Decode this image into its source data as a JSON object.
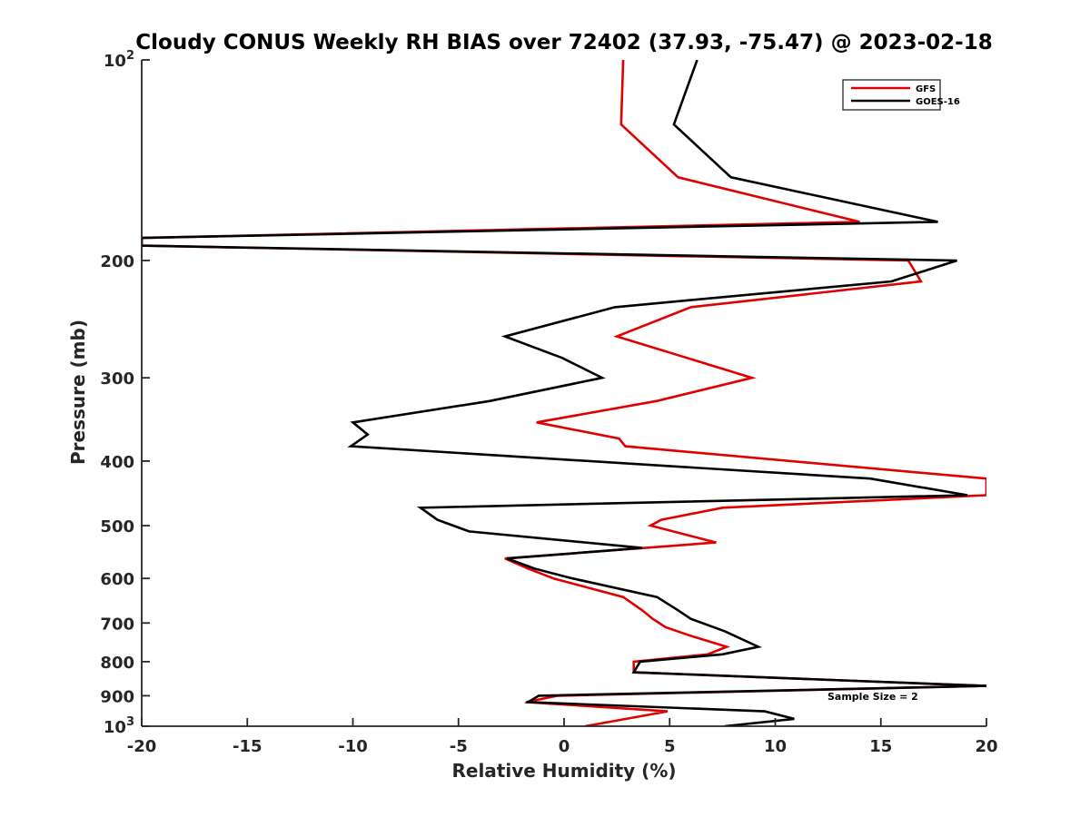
{
  "chart_data": {
    "type": "line",
    "title": "Cloudy CONUS Weekly RH BIAS over 72402 (37.93, -75.47) @ 2023-02-18",
    "xlabel": "Relative Humidity (%)",
    "ylabel": "Pressure (mb)",
    "xlim": [
      -20,
      20
    ],
    "ylim": [
      100,
      1000
    ],
    "y_scale": "log",
    "y_reversed": true,
    "grid": false,
    "legend_position": "top-right",
    "x_ticks": [
      "-20",
      "-15",
      "-10",
      "-5",
      "0",
      "5",
      "10",
      "15",
      "20"
    ],
    "y_ticks": [
      {
        "value": 100,
        "base": "10",
        "exp": "2"
      },
      {
        "value": 200,
        "label": "200"
      },
      {
        "value": 300,
        "label": "300"
      },
      {
        "value": 400,
        "label": "400"
      },
      {
        "value": 500,
        "label": "500"
      },
      {
        "value": 600,
        "label": "600"
      },
      {
        "value": 700,
        "label": "700"
      },
      {
        "value": 800,
        "label": "800"
      },
      {
        "value": 900,
        "label": "900"
      },
      {
        "value": 1000,
        "base": "10",
        "exp": "3"
      }
    ],
    "series": [
      {
        "name": "GFS",
        "color": "#e00000",
        "points": [
          [
            2.8,
            100
          ],
          [
            2.7,
            125
          ],
          [
            5.4,
            150
          ],
          [
            14.0,
            175
          ],
          [
            -20,
            185
          ],
          [
            -20,
            190
          ],
          [
            16.3,
            200
          ],
          [
            16.9,
            215
          ],
          [
            6.0,
            235
          ],
          [
            2.5,
            260
          ],
          [
            8.9,
            300
          ],
          [
            4.4,
            325
          ],
          [
            -1.3,
            350
          ],
          [
            2.6,
            370
          ],
          [
            2.9,
            380
          ],
          [
            20,
            425
          ],
          [
            20,
            450
          ],
          [
            7.5,
            470
          ],
          [
            4.6,
            490
          ],
          [
            4.1,
            500
          ],
          [
            7.2,
            530
          ],
          [
            -2.8,
            560
          ],
          [
            -1.7,
            580
          ],
          [
            -0.5,
            600
          ],
          [
            2.8,
            640
          ],
          [
            3.7,
            670
          ],
          [
            4.2,
            690
          ],
          [
            4.8,
            710
          ],
          [
            5.9,
            730
          ],
          [
            7.7,
            760
          ],
          [
            6.8,
            780
          ],
          [
            3.3,
            800
          ],
          [
            3.3,
            830
          ],
          [
            20,
            870
          ],
          [
            -0.3,
            900
          ],
          [
            -1.8,
            920
          ],
          [
            4.9,
            950
          ],
          [
            1.0,
            1000
          ]
        ]
      },
      {
        "name": "GOES-16",
        "color": "#000000",
        "points": [
          [
            6.3,
            100
          ],
          [
            5.2,
            125
          ],
          [
            7.9,
            150
          ],
          [
            17.7,
            175
          ],
          [
            -20,
            185
          ],
          [
            -20,
            190
          ],
          [
            18.6,
            200
          ],
          [
            15.5,
            215
          ],
          [
            2.4,
            235
          ],
          [
            -2.8,
            260
          ],
          [
            -0.1,
            280
          ],
          [
            1.8,
            300
          ],
          [
            -3.5,
            325
          ],
          [
            -10.0,
            350
          ],
          [
            -9.3,
            365
          ],
          [
            -10.1,
            380
          ],
          [
            14.5,
            425
          ],
          [
            19.1,
            450
          ],
          [
            -6.8,
            470
          ],
          [
            -6.0,
            490
          ],
          [
            -4.5,
            510
          ],
          [
            3.7,
            540
          ],
          [
            -2.7,
            560
          ],
          [
            -1.4,
            580
          ],
          [
            0.4,
            600
          ],
          [
            4.4,
            640
          ],
          [
            5.4,
            670
          ],
          [
            6.0,
            690
          ],
          [
            7.6,
            720
          ],
          [
            9.2,
            760
          ],
          [
            7.5,
            780
          ],
          [
            3.6,
            800
          ],
          [
            3.3,
            830
          ],
          [
            20,
            870
          ],
          [
            -1.2,
            900
          ],
          [
            -1.7,
            920
          ],
          [
            9.5,
            950
          ],
          [
            10.9,
            975
          ],
          [
            7.6,
            1000
          ]
        ]
      }
    ],
    "annotation": "Sample Size = 2"
  }
}
